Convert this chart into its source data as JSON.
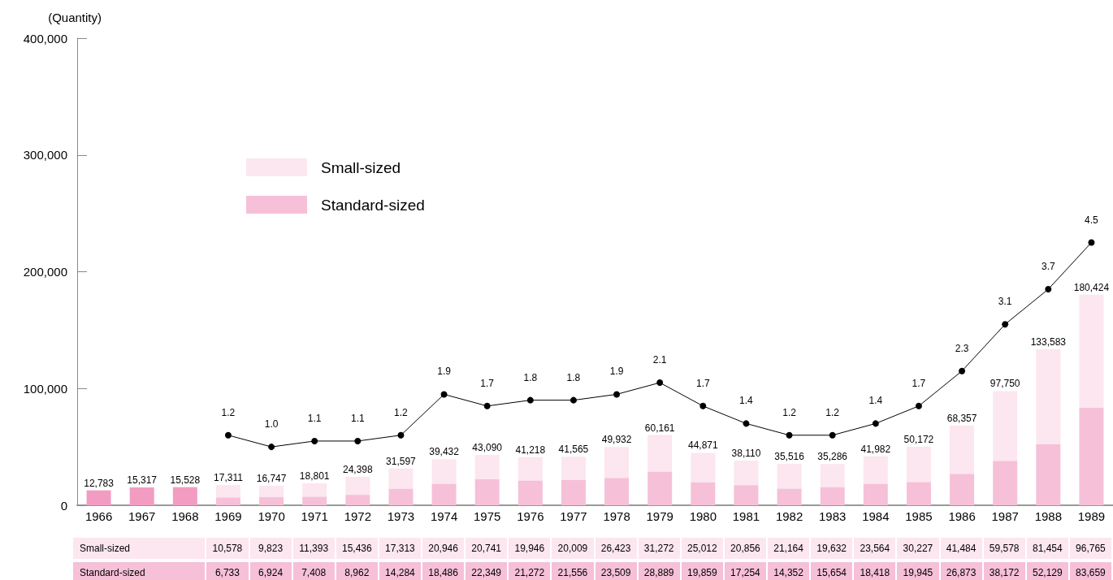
{
  "chart_data": {
    "type": "bar",
    "ylabel": "(Quantity)",
    "categories": [
      "1966",
      "1967",
      "1968",
      "1969",
      "1970",
      "1971",
      "1972",
      "1973",
      "1974",
      "1975",
      "1976",
      "1977",
      "1978",
      "1979",
      "1980",
      "1981",
      "1982",
      "1983",
      "1984",
      "1985",
      "1986",
      "1987",
      "1988",
      "1989"
    ],
    "series": [
      {
        "color": "#f39cc2",
        "values": [
          12783,
          15317,
          15528,
          null,
          null,
          null,
          null,
          null,
          null,
          null,
          null,
          null,
          null,
          null,
          null,
          null,
          null,
          null,
          null,
          null,
          null,
          null,
          null,
          null
        ]
      },
      {
        "name": "Standard-sized",
        "color": "#f6c0d8",
        "values": [
          null,
          null,
          null,
          6733,
          6924,
          7408,
          8962,
          14284,
          18486,
          22349,
          21272,
          21556,
          23509,
          28889,
          19859,
          17254,
          14352,
          15654,
          18418,
          19945,
          26873,
          38172,
          52129,
          83659
        ],
        "value_labels": [
          null,
          null,
          null,
          "6,733",
          "6,924",
          "7,408",
          "8,962",
          "14,284",
          "18,486",
          "22,349",
          "21,272",
          "21,556",
          "23,509",
          "28,889",
          "19,859",
          "17,254",
          "14,352",
          "15,654",
          "18,418",
          "19,945",
          "26,873",
          "38,172",
          "52,129",
          "83,659"
        ]
      },
      {
        "name": "Small-sized",
        "color": "#fce6ef",
        "values": [
          null,
          null,
          null,
          10578,
          9823,
          11393,
          15436,
          17313,
          20946,
          20741,
          19946,
          20009,
          26423,
          31272,
          25012,
          20856,
          21164,
          19632,
          23564,
          30227,
          41484,
          59578,
          81454,
          96765
        ],
        "value_labels": [
          null,
          null,
          null,
          "10,578",
          "9,823",
          "11,393",
          "15,436",
          "17,313",
          "20,946",
          "20,741",
          "19,946",
          "20,009",
          "26,423",
          "31,272",
          "25,012",
          "20,856",
          "21,164",
          "19,632",
          "23,564",
          "30,227",
          "41,484",
          "59,578",
          "81,454",
          "96,765"
        ]
      },
      {
        "type": "line",
        "axis": "y2",
        "color": "#000000",
        "values": [
          null,
          null,
          null,
          1.2,
          1.0,
          1.1,
          1.1,
          1.2,
          1.9,
          1.7,
          1.8,
          1.8,
          1.9,
          2.1,
          1.7,
          1.4,
          1.2,
          1.2,
          1.4,
          1.7,
          2.3,
          3.1,
          3.7,
          4.5
        ],
        "value_labels": [
          null,
          null,
          null,
          "1.2",
          "1.0",
          "1.1",
          "1.1",
          "1.2",
          "1.9",
          "1.7",
          "1.8",
          "1.8",
          "1.9",
          "2.1",
          "1.7",
          "1.4",
          "1.2",
          "1.2",
          "1.4",
          "1.7",
          "2.3",
          "3.1",
          "3.7",
          "4.5"
        ]
      }
    ],
    "totals": [
      "12,783",
      "15,317",
      "15,528",
      "17,311",
      "16,747",
      "18,801",
      "24,398",
      "31,597",
      "39,432",
      "43,090",
      "41,218",
      "41,565",
      "49,932",
      "60,161",
      "44,871",
      "38,110",
      "35,516",
      "35,286",
      "41,982",
      "50,172",
      "68,357",
      "97,750",
      "133,583",
      "180,424"
    ],
    "stacked": true,
    "marker": "circle",
    "line_style": "solid",
    "ylim": [
      0,
      400000
    ],
    "yticks": [
      0,
      {
        "value": 100000,
        "label": "100,000"
      },
      {
        "value": 200000,
        "label": "200,000"
      },
      {
        "value": 300000,
        "label": "300,000"
      },
      {
        "value": 400000,
        "label": "400,000"
      }
    ],
    "y2lim": [
      0,
      8
    ],
    "grid": false,
    "legend": "top left"
  }
}
